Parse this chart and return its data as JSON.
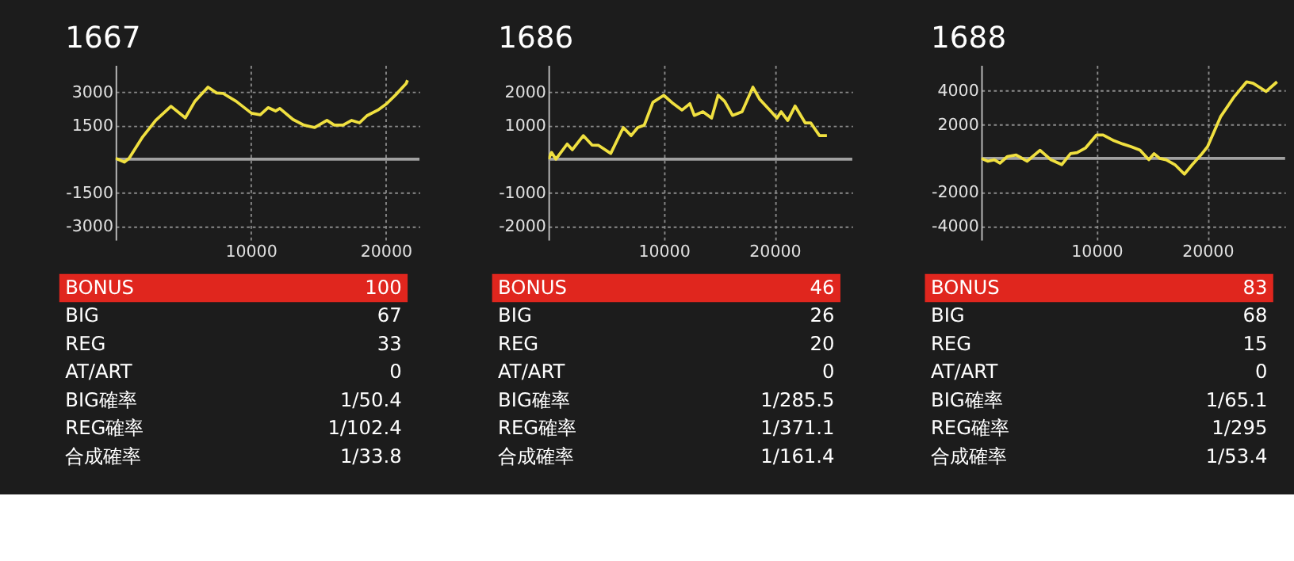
{
  "chart_data": [
    {
      "type": "line",
      "title": "1667",
      "xlim": [
        0,
        22500
      ],
      "ylim": [
        -3600,
        4200
      ],
      "xticks": [
        10000,
        20000
      ],
      "yticks": [
        -3000,
        -1500,
        1500,
        3000
      ],
      "grid": true,
      "ref_lines": [
        {
          "axis": "y",
          "value": 0,
          "color": "#a0a0a0"
        }
      ],
      "series": [
        {
          "color": "#f0e040",
          "x": [
            0,
            650,
            1000,
            2000,
            2970,
            4100,
            5160,
            5870,
            6840,
            7480,
            7970,
            8930,
            10060,
            10710,
            11290,
            11840,
            12160,
            13130,
            13940,
            14740,
            15650,
            16190,
            16840,
            17480,
            18060,
            18610,
            19420,
            20060,
            20770,
            21520,
            21610
          ],
          "values": [
            40,
            -130,
            40,
            990,
            1730,
            2360,
            1840,
            2580,
            3210,
            2950,
            2930,
            2580,
            2050,
            1980,
            2300,
            2150,
            2260,
            1770,
            1520,
            1410,
            1730,
            1520,
            1520,
            1730,
            1620,
            1940,
            2190,
            2470,
            2890,
            3380,
            3520
          ]
        }
      ],
      "annotations": [
        "BONUS",
        "100",
        "BIG",
        "67",
        "REG",
        "33",
        "AT/ART",
        "0",
        "BIG確率",
        "1/50.4",
        "REG確率",
        "1/102.4",
        "合成確率",
        "1/33.8"
      ]
    },
    {
      "type": "line",
      "title": "1686",
      "xlim": [
        -400,
        27000
      ],
      "ylim": [
        -2400,
        2800
      ],
      "xticks": [
        10000,
        20000
      ],
      "yticks": [
        -2000,
        -1000,
        1000,
        2000
      ],
      "grid": true,
      "ref_lines": [
        {
          "axis": "y",
          "value": 0,
          "color": "#a0a0a0"
        }
      ],
      "series": [
        {
          "color": "#f0e040",
          "x": [
            -390,
            -120,
            270,
            1290,
            1760,
            2750,
            3530,
            4120,
            5220,
            6350,
            7060,
            7650,
            8240,
            9020,
            10000,
            10860,
            11650,
            12350,
            12750,
            13530,
            14310,
            14900,
            15490,
            16200,
            17060,
            18040,
            18630,
            19610,
            20200,
            20590,
            21180,
            21840,
            22750,
            23250,
            24040,
            24710
          ],
          "values": [
            0,
            200,
            0,
            450,
            280,
            700,
            420,
            410,
            170,
            940,
            700,
            940,
            1010,
            1690,
            1900,
            1650,
            1460,
            1650,
            1300,
            1410,
            1220,
            1900,
            1720,
            1300,
            1410,
            2140,
            1790,
            1440,
            1220,
            1410,
            1150,
            1580,
            1080,
            1080,
            700,
            700
          ]
        }
      ],
      "annotations": [
        "BONUS",
        "46",
        "BIG",
        "26",
        "REG",
        "20",
        "AT/ART",
        "0",
        "BIG確率",
        "1/285.5",
        "REG確率",
        "1/371.1",
        "合成確率",
        "1/161.4"
      ]
    },
    {
      "type": "line",
      "title": "1688",
      "xlim": [
        -400,
        27000
      ],
      "ylim": [
        -4800,
        5500
      ],
      "xticks": [
        10000,
        20000
      ],
      "yticks": [
        -4000,
        -2000,
        2000,
        4000
      ],
      "grid": true,
      "ref_lines": [
        {
          "axis": "y",
          "value": 0,
          "color": "#a0a0a0"
        }
      ],
      "series": [
        {
          "color": "#f0e040",
          "x": [
            -390,
            200,
            780,
            1290,
            1960,
            2750,
            3140,
            3730,
            4900,
            5880,
            6860,
            7650,
            8240,
            9020,
            10000,
            10590,
            11570,
            12350,
            13140,
            13920,
            14710,
            15180,
            15690,
            16270,
            17060,
            17920,
            18630,
            19410,
            20000,
            21180,
            22350,
            23530,
            24120,
            25290,
            26270
          ],
          "values": [
            0,
            -170,
            -80,
            -280,
            110,
            200,
            60,
            -170,
            480,
            -80,
            -370,
            280,
            340,
            620,
            1380,
            1380,
            1040,
            850,
            680,
            480,
            -80,
            280,
            0,
            -80,
            -370,
            -930,
            -370,
            200,
            680,
            2450,
            3580,
            4510,
            4420,
            3940,
            4510
          ]
        }
      ],
      "annotations": [
        "BONUS",
        "83",
        "BIG",
        "68",
        "REG",
        "15",
        "AT/ART",
        "0",
        "BIG確率",
        "1/65.1",
        "REG確率",
        "1/295",
        "合成確率",
        "1/53.4"
      ]
    }
  ]
}
